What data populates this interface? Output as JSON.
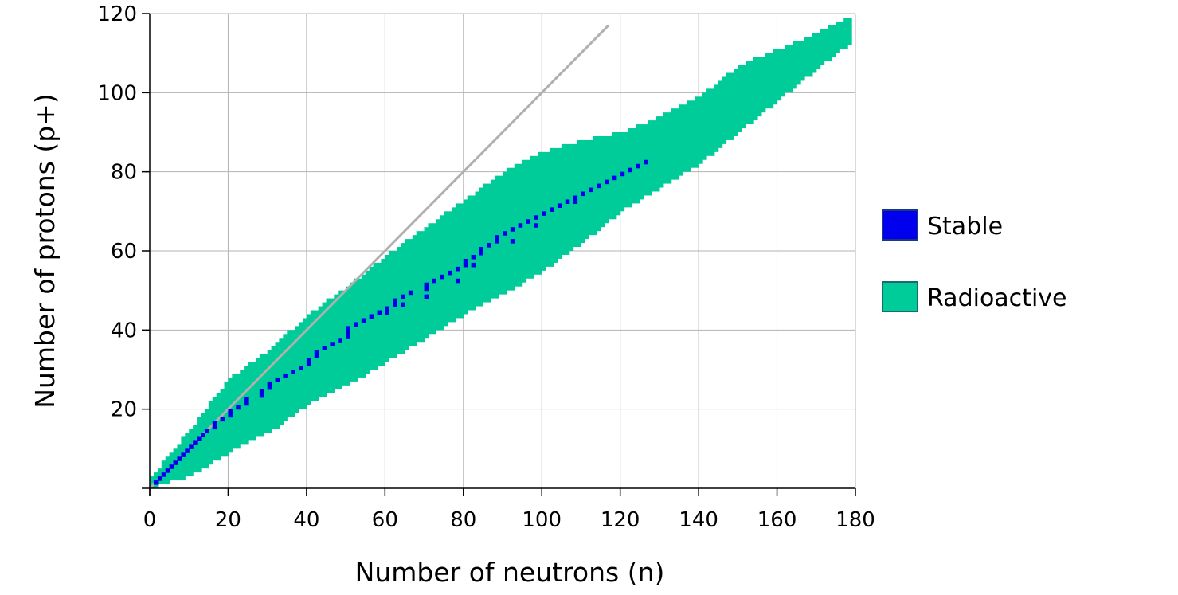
{
  "chart_data": {
    "type": "scatter",
    "title": "",
    "xlabel": "Number of neutrons (n)",
    "ylabel": "Number of protons (p+)",
    "xlim": [
      0,
      180
    ],
    "ylim": [
      0,
      120
    ],
    "x_ticks": [
      0,
      20,
      40,
      60,
      80,
      100,
      120,
      140,
      160,
      180
    ],
    "y_ticks": [
      20,
      40,
      60,
      80,
      100,
      120
    ],
    "grid": true,
    "legend_position": "right",
    "series": [
      {
        "name": "Radioactive",
        "color": "#00cc99",
        "band": [
          {
            "n": 0,
            "z_min": 0,
            "z_max": 2
          },
          {
            "n": 10,
            "z_min": 3,
            "z_max": 14
          },
          {
            "n": 20,
            "z_min": 9,
            "z_max": 27
          },
          {
            "n": 30,
            "z_min": 14,
            "z_max": 34
          },
          {
            "n": 40,
            "z_min": 21,
            "z_max": 43
          },
          {
            "n": 50,
            "z_min": 26,
            "z_max": 50
          },
          {
            "n": 60,
            "z_min": 32,
            "z_max": 58
          },
          {
            "n": 70,
            "z_min": 38,
            "z_max": 65
          },
          {
            "n": 80,
            "z_min": 44,
            "z_max": 72
          },
          {
            "n": 90,
            "z_min": 49,
            "z_max": 79
          },
          {
            "n": 100,
            "z_min": 55,
            "z_max": 84
          },
          {
            "n": 110,
            "z_min": 62,
            "z_max": 87
          },
          {
            "n": 120,
            "z_min": 70,
            "z_max": 89
          },
          {
            "n": 130,
            "z_min": 76,
            "z_max": 93
          },
          {
            "n": 140,
            "z_min": 82,
            "z_max": 98
          },
          {
            "n": 150,
            "z_min": 90,
            "z_max": 106
          },
          {
            "n": 160,
            "z_min": 98,
            "z_max": 110
          },
          {
            "n": 170,
            "z_min": 106,
            "z_max": 114
          },
          {
            "n": 178,
            "z_min": 112,
            "z_max": 118
          }
        ]
      },
      {
        "name": "Stable",
        "color": "#0000ee",
        "points": [
          [
            1,
            1
          ],
          [
            2,
            2
          ],
          [
            3,
            3
          ],
          [
            4,
            4
          ],
          [
            5,
            5
          ],
          [
            6,
            6
          ],
          [
            7,
            7
          ],
          [
            8,
            8
          ],
          [
            9,
            9
          ],
          [
            10,
            10
          ],
          [
            11,
            11
          ],
          [
            12,
            12
          ],
          [
            13,
            13
          ],
          [
            14,
            14
          ],
          [
            16,
            15
          ],
          [
            16,
            16
          ],
          [
            18,
            17
          ],
          [
            20,
            18
          ],
          [
            20,
            19
          ],
          [
            22,
            20
          ],
          [
            24,
            21
          ],
          [
            24,
            22
          ],
          [
            28,
            23
          ],
          [
            28,
            24
          ],
          [
            30,
            25
          ],
          [
            30,
            26
          ],
          [
            32,
            27
          ],
          [
            34,
            28
          ],
          [
            36,
            29
          ],
          [
            38,
            30
          ],
          [
            40,
            31
          ],
          [
            40,
            32
          ],
          [
            42,
            33
          ],
          [
            42,
            34
          ],
          [
            44,
            35
          ],
          [
            46,
            36
          ],
          [
            48,
            37
          ],
          [
            50,
            38
          ],
          [
            50,
            39
          ],
          [
            50,
            40
          ],
          [
            52,
            41
          ],
          [
            54,
            42
          ],
          [
            56,
            43
          ],
          [
            58,
            44
          ],
          [
            60,
            45
          ],
          [
            62,
            46
          ],
          [
            62,
            47
          ],
          [
            64,
            48
          ],
          [
            66,
            49
          ],
          [
            70,
            50
          ],
          [
            70,
            51
          ],
          [
            72,
            52
          ],
          [
            74,
            53
          ],
          [
            76,
            54
          ],
          [
            78,
            55
          ],
          [
            80,
            56
          ],
          [
            80,
            57
          ],
          [
            82,
            58
          ],
          [
            84,
            59
          ],
          [
            84,
            60
          ],
          [
            86,
            61
          ],
          [
            88,
            62
          ],
          [
            88,
            63
          ],
          [
            90,
            64
          ],
          [
            92,
            65
          ],
          [
            94,
            66
          ],
          [
            96,
            67
          ],
          [
            98,
            68
          ],
          [
            100,
            69
          ],
          [
            102,
            70
          ],
          [
            104,
            71
          ],
          [
            106,
            72
          ],
          [
            108,
            73
          ],
          [
            110,
            74
          ],
          [
            112,
            75
          ],
          [
            114,
            76
          ],
          [
            116,
            77
          ],
          [
            118,
            78
          ],
          [
            120,
            79
          ],
          [
            122,
            80
          ],
          [
            124,
            81
          ],
          [
            126,
            82
          ],
          [
            60,
            44
          ],
          [
            64,
            46
          ],
          [
            70,
            48
          ],
          [
            78,
            52
          ],
          [
            82,
            56
          ],
          [
            92,
            62
          ],
          [
            98,
            66
          ],
          [
            108,
            72
          ]
        ]
      }
    ],
    "reference_line": {
      "from": [
        0,
        0
      ],
      "to": [
        117,
        117
      ],
      "color": "#b0b0b0"
    }
  }
}
